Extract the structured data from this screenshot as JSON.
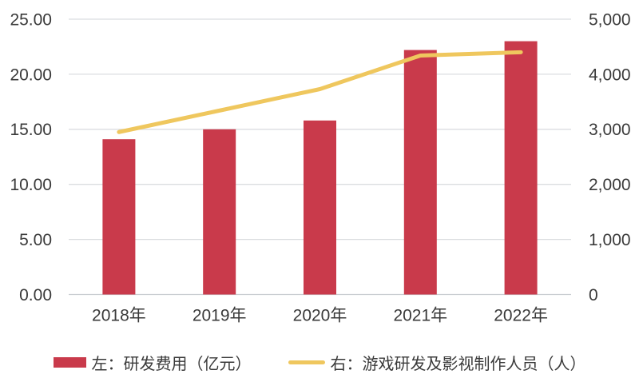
{
  "chart_data": {
    "type": "bar",
    "subtype": "combo-bar-line-dual-axis",
    "categories": [
      "2018年",
      "2019年",
      "2020年",
      "2021年",
      "2022年"
    ],
    "series": [
      {
        "name": "左：研发费用（亿元）",
        "type": "bar",
        "axis": "left",
        "color": "#c93a4b",
        "values": [
          14.1,
          15.0,
          15.8,
          22.2,
          23.0
        ]
      },
      {
        "name": "右：游戏研发及影视制作人员（人）",
        "type": "line",
        "axis": "right",
        "color": "#efc75e",
        "values": [
          2950,
          3340,
          3730,
          4340,
          4400
        ]
      }
    ],
    "left_axis": {
      "min": 0,
      "max": 25,
      "step": 5,
      "tick_labels": [
        "0.00",
        "5.00",
        "10.00",
        "15.00",
        "20.00",
        "25.00"
      ]
    },
    "right_axis": {
      "min": 0,
      "max": 5000,
      "step": 1000,
      "tick_labels": [
        "0",
        "1,000",
        "2,000",
        "3,000",
        "4,000",
        "5,000"
      ]
    },
    "grid": true,
    "legend_position": "bottom",
    "colors": {
      "background": "#ffffff",
      "gridline": "#dbdde0",
      "baseline": "#c9cdd1",
      "text": "#3a3a3a"
    }
  },
  "legend": {
    "bar_label": "左：研发费用（亿元）",
    "line_label": "右：游戏研发及影视制作人员（人）"
  }
}
